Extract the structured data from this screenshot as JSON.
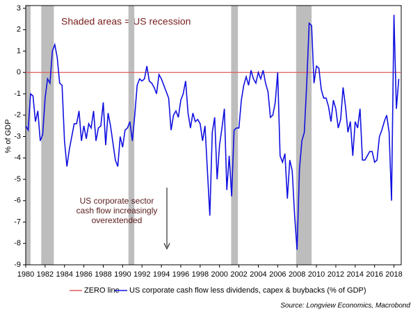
{
  "chart_data": {
    "type": "line",
    "annotation": "Shaded areas = US recession",
    "callout": [
      "US corporate sector",
      "cash flow increasingly",
      "overextended"
    ],
    "ylabel": "% of GDP",
    "source": "Source: Longview Economics, Macrobond",
    "xlim": [
      1980,
      2018.75
    ],
    "ylim": [
      -9,
      3
    ],
    "xticks": [
      1980,
      1982,
      1984,
      1986,
      1988,
      1990,
      1992,
      1994,
      1996,
      1998,
      2000,
      2002,
      2004,
      2006,
      2008,
      2010,
      2012,
      2014,
      2016,
      2018
    ],
    "yticks": [
      3,
      2,
      1,
      0,
      -1,
      -2,
      -3,
      -4,
      -5,
      -6,
      -7,
      -8,
      -9
    ],
    "recessions": [
      [
        1980,
        1980.5
      ],
      [
        1981.6,
        1982.9
      ],
      [
        1990.6,
        1991.2
      ],
      [
        2001.2,
        2001.9
      ],
      [
        2007.9,
        2009.5
      ]
    ],
    "hline": {
      "name": "ZERO line",
      "value": 0,
      "color": "#e05a5a"
    },
    "x": [
      1980,
      1980.25,
      1980.5,
      1980.75,
      1981,
      1981.25,
      1981.5,
      1981.75,
      1982,
      1982.25,
      1982.5,
      1982.75,
      1983,
      1983.25,
      1983.5,
      1983.75,
      1984,
      1984.25,
      1984.5,
      1984.75,
      1985,
      1985.25,
      1985.5,
      1985.75,
      1986,
      1986.25,
      1986.5,
      1986.75,
      1987,
      1987.25,
      1987.5,
      1987.75,
      1988,
      1988.25,
      1988.5,
      1988.75,
      1989,
      1989.25,
      1989.5,
      1989.75,
      1990,
      1990.25,
      1990.5,
      1990.75,
      1991,
      1991.25,
      1991.5,
      1991.75,
      1992,
      1992.25,
      1992.5,
      1992.75,
      1993,
      1993.25,
      1993.5,
      1993.75,
      1994,
      1994.25,
      1994.5,
      1994.75,
      1995,
      1995.25,
      1995.5,
      1995.75,
      1996,
      1996.25,
      1996.5,
      1996.75,
      1997,
      1997.25,
      1997.5,
      1997.75,
      1998,
      1998.25,
      1998.5,
      1998.75,
      1999,
      1999.25,
      1999.5,
      1999.75,
      2000,
      2000.25,
      2000.5,
      2000.75,
      2001,
      2001.25,
      2001.5,
      2001.75,
      2002,
      2002.25,
      2002.5,
      2002.75,
      2003,
      2003.25,
      2003.5,
      2003.75,
      2004,
      2004.25,
      2004.5,
      2004.75,
      2005,
      2005.25,
      2005.5,
      2005.75,
      2006,
      2006.25,
      2006.5,
      2006.75,
      2007,
      2007.25,
      2007.5,
      2007.75,
      2008,
      2008.25,
      2008.5,
      2008.75,
      2009,
      2009.25,
      2009.5,
      2009.75,
      2010,
      2010.25,
      2010.5,
      2010.75,
      2011,
      2011.25,
      2011.5,
      2011.75,
      2012,
      2012.25,
      2012.5,
      2012.75,
      2013,
      2013.25,
      2013.5,
      2013.75,
      2014,
      2014.25,
      2014.5,
      2014.75,
      2015,
      2015.25,
      2015.5,
      2015.75,
      2016,
      2016.25,
      2016.5,
      2016.75,
      2017,
      2017.25,
      2017.5,
      2017.75,
      2018,
      2018.25,
      2018.5
    ],
    "series": [
      {
        "name": "US corporate cash flow less dividends, capex & buybacks (% of GDP)",
        "color": "#1010e0",
        "values": [
          -2.5,
          -2.7,
          -1.0,
          -1.1,
          -2.3,
          -1.8,
          -3.2,
          -2.9,
          -1.2,
          -0.3,
          -0.5,
          1.0,
          1.3,
          0.7,
          -0.5,
          -0.6,
          -3.2,
          -4.4,
          -3.6,
          -3.0,
          -2.4,
          -2.4,
          -1.8,
          -3.2,
          -2.5,
          -3.1,
          -2.4,
          -2.6,
          -1.8,
          -3.2,
          -2.6,
          -2.5,
          -1.4,
          -3.4,
          -1.9,
          -2.5,
          -3.3,
          -4.1,
          -4.4,
          -3.0,
          -3.5,
          -2.7,
          -2.6,
          -2.3,
          -3.2,
          -2.0,
          -0.6,
          -0.3,
          -0.4,
          -0.3,
          0.3,
          -0.4,
          -0.5,
          -0.7,
          -1.0,
          -0.1,
          -0.3,
          -0.6,
          -0.9,
          -1.2,
          -2.7,
          -2.0,
          -1.8,
          -2.1,
          -1.3,
          -1.0,
          -0.4,
          -1.9,
          -2.6,
          -1.9,
          -2.3,
          -2.2,
          -2.4,
          -3.2,
          -2.5,
          -4.6,
          -6.7,
          -2.8,
          -2.1,
          -5.0,
          -3.4,
          -2.6,
          -1.7,
          -5.5,
          -3.9,
          -5.8,
          -2.7,
          -2.6,
          -2.6,
          -1.3,
          -0.6,
          -0.2,
          -0.6,
          0.1,
          -0.3,
          -0.5,
          0.0,
          -0.3,
          0.1,
          -0.5,
          -0.9,
          -2.1,
          -2.0,
          -1.4,
          0.0,
          -3.9,
          -4.2,
          -3.8,
          -5.9,
          -4.1,
          -4.6,
          -6.7,
          -8.3,
          -4.5,
          -3.2,
          -2.8,
          -0.5,
          2.3,
          2.2,
          -0.5,
          0.3,
          0.2,
          -0.8,
          -1.2,
          -1.2,
          -1.6,
          -2.3,
          -1.3,
          -1.7,
          -2.6,
          -2.2,
          -0.7,
          -1.6,
          -2.8,
          -2.3,
          -3.9,
          -2.3,
          -2.6,
          -1.7,
          -4.1,
          -4.1,
          -3.9,
          -3.7,
          -3.7,
          -4.2,
          -4.1,
          -3.0,
          -2.7,
          -2.3,
          -2.0,
          -2.8,
          -6.0,
          2.7,
          -1.7,
          -0.3
        ]
      }
    ]
  }
}
